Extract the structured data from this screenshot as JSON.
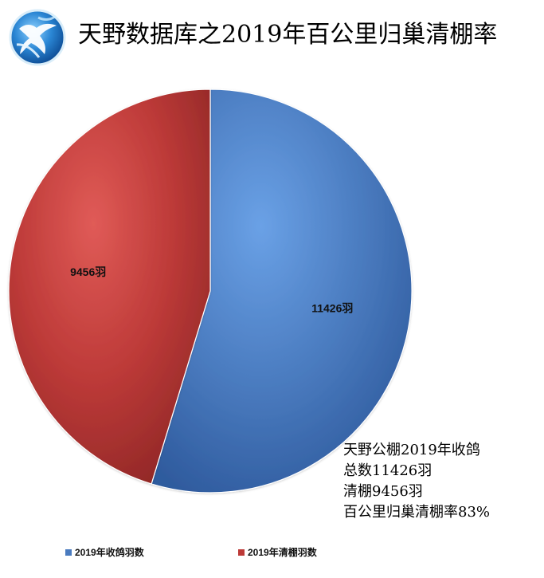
{
  "header": {
    "title": "天野数据库之2019年百公里归巢清棚率",
    "logo_icon": "globe-dove-logo"
  },
  "note_lines": [
    "天野公棚2019年收鸽",
    "总数11426羽",
    "清棚9456羽",
    "百公里归巢清棚率83%"
  ],
  "chart_data": {
    "type": "pie",
    "title": "",
    "categories": [
      "2019年收鸽羽数",
      "2019年清棚羽数"
    ],
    "values": [
      11426,
      9456
    ],
    "data_labels": [
      "11426羽",
      "9456羽"
    ],
    "colors": [
      "#4a7bbf",
      "#bd3a38"
    ],
    "legend_position": "bottom",
    "start_angle_deg": 0
  }
}
